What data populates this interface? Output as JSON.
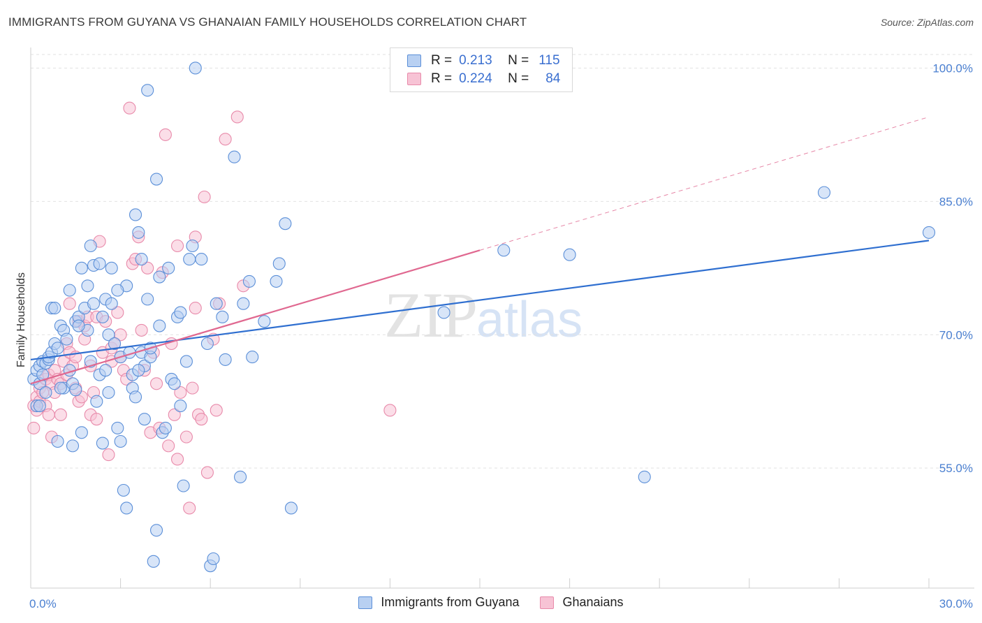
{
  "header": {
    "title": "IMMIGRANTS FROM GUYANA VS GHANAIAN FAMILY HOUSEHOLDS CORRELATION CHART",
    "source": "Source: ZipAtlas.com"
  },
  "watermark": {
    "zip": "ZIP",
    "atlas": "atlas"
  },
  "legend": {
    "series": [
      {
        "r_label": "R =",
        "r_value": "0.213",
        "n_label": "N =",
        "n_value": "115"
      },
      {
        "r_label": "R =",
        "r_value": "0.224",
        "n_label": "N =",
        "n_value": "84"
      }
    ]
  },
  "colors": {
    "blue_fill": "#b8d0f2",
    "blue_stroke": "#5b8fd8",
    "blue_line": "#2f6fd0",
    "pink_fill": "#f7c3d5",
    "pink_stroke": "#e88aaa",
    "pink_line": "#e06890",
    "grid": "#e2e2e2",
    "tick_text": "#4a7fd0"
  },
  "chart_data": {
    "type": "scatter",
    "title": "IMMIGRANTS FROM GUYANA VS GHANAIAN FAMILY HOUSEHOLDS CORRELATION CHART",
    "xlabel": "",
    "ylabel": "Family Households",
    "xlim": [
      0,
      30
    ],
    "ylim": [
      41.5,
      102
    ],
    "x_tick_labels": [
      "0.0%",
      "30.0%"
    ],
    "y_ticks": [
      55,
      70,
      85,
      100
    ],
    "y_tick_labels": [
      "55.0%",
      "70.0%",
      "85.0%",
      "100.0%"
    ],
    "grid": true,
    "legend_placement": "top-center",
    "series": [
      {
        "name": "Immigrants from Guyana",
        "color": "#5b8fd8",
        "trend": {
          "x": [
            0,
            30
          ],
          "y": [
            67.2,
            80.6
          ]
        },
        "points": [
          [
            0.1,
            65.0
          ],
          [
            0.2,
            66.0
          ],
          [
            0.2,
            62.0
          ],
          [
            0.3,
            64.5
          ],
          [
            0.3,
            66.5
          ],
          [
            0.4,
            65.5
          ],
          [
            0.4,
            67.0
          ],
          [
            0.5,
            66.8
          ],
          [
            0.5,
            63.5
          ],
          [
            0.6,
            67.2
          ],
          [
            0.6,
            67.5
          ],
          [
            0.7,
            68.0
          ],
          [
            0.7,
            73.0
          ],
          [
            0.8,
            69.0
          ],
          [
            0.9,
            68.5
          ],
          [
            0.9,
            58.0
          ],
          [
            1.0,
            71.0
          ],
          [
            1.1,
            70.5
          ],
          [
            1.1,
            64.0
          ],
          [
            1.2,
            69.5
          ],
          [
            1.3,
            66.0
          ],
          [
            1.3,
            75.0
          ],
          [
            1.4,
            57.5
          ],
          [
            1.4,
            64.5
          ],
          [
            1.5,
            71.5
          ],
          [
            1.5,
            63.8
          ],
          [
            1.6,
            72.0
          ],
          [
            1.7,
            77.5
          ],
          [
            1.7,
            59.0
          ],
          [
            1.8,
            73.0
          ],
          [
            1.9,
            70.5
          ],
          [
            1.9,
            75.5
          ],
          [
            2.0,
            80.0
          ],
          [
            2.0,
            67.0
          ],
          [
            2.1,
            73.5
          ],
          [
            2.1,
            77.8
          ],
          [
            2.2,
            62.5
          ],
          [
            2.3,
            78.0
          ],
          [
            2.3,
            65.5
          ],
          [
            2.4,
            57.8
          ],
          [
            2.5,
            74.0
          ],
          [
            2.5,
            66.0
          ],
          [
            2.6,
            63.5
          ],
          [
            2.6,
            70.0
          ],
          [
            2.7,
            77.5
          ],
          [
            2.7,
            73.5
          ],
          [
            2.8,
            69.0
          ],
          [
            2.9,
            59.5
          ],
          [
            3.0,
            67.5
          ],
          [
            3.0,
            58.0
          ],
          [
            3.1,
            52.5
          ],
          [
            3.2,
            75.5
          ],
          [
            3.2,
            50.5
          ],
          [
            3.3,
            68.0
          ],
          [
            3.4,
            65.5
          ],
          [
            3.4,
            64.0
          ],
          [
            3.5,
            83.5
          ],
          [
            3.5,
            63.0
          ],
          [
            3.6,
            81.5
          ],
          [
            3.7,
            68.0
          ],
          [
            3.7,
            78.5
          ],
          [
            3.8,
            66.5
          ],
          [
            3.8,
            60.5
          ],
          [
            3.9,
            97.5
          ],
          [
            3.9,
            74.0
          ],
          [
            4.0,
            67.5
          ],
          [
            4.0,
            68.5
          ],
          [
            4.1,
            44.5
          ],
          [
            4.2,
            48.0
          ],
          [
            4.2,
            87.5
          ],
          [
            4.3,
            76.5
          ],
          [
            4.4,
            59.0
          ],
          [
            4.5,
            59.5
          ],
          [
            4.6,
            77.5
          ],
          [
            4.7,
            65.0
          ],
          [
            4.8,
            64.5
          ],
          [
            4.9,
            72.0
          ],
          [
            5.0,
            62.0
          ],
          [
            5.0,
            72.5
          ],
          [
            5.1,
            53.0
          ],
          [
            5.2,
            67.0
          ],
          [
            5.3,
            78.5
          ],
          [
            5.4,
            80.0
          ],
          [
            5.5,
            100.0
          ],
          [
            5.7,
            78.5
          ],
          [
            6.0,
            44.0
          ],
          [
            6.1,
            44.8
          ],
          [
            6.2,
            73.5
          ],
          [
            6.4,
            72.0
          ],
          [
            6.5,
            67.2
          ],
          [
            6.8,
            90.0
          ],
          [
            7.0,
            54.0
          ],
          [
            7.1,
            73.5
          ],
          [
            7.3,
            76.0
          ],
          [
            7.4,
            67.5
          ],
          [
            7.8,
            71.5
          ],
          [
            8.2,
            76.0
          ],
          [
            8.3,
            78.0
          ],
          [
            8.5,
            82.5
          ],
          [
            8.7,
            50.5
          ],
          [
            13.8,
            72.5
          ],
          [
            15.8,
            79.5
          ],
          [
            18.0,
            79.0
          ],
          [
            20.5,
            54.0
          ],
          [
            26.5,
            86.0
          ],
          [
            30.0,
            81.5
          ],
          [
            0.3,
            62.0
          ],
          [
            0.8,
            73.0
          ],
          [
            1.6,
            71.0
          ],
          [
            2.9,
            75.0
          ],
          [
            3.6,
            66.0
          ],
          [
            4.3,
            71.0
          ],
          [
            5.9,
            69.0
          ],
          [
            1.0,
            64.0
          ],
          [
            2.4,
            72.0
          ]
        ]
      },
      {
        "name": "Ghanaians",
        "color": "#e88aaa",
        "trend": {
          "x": [
            0,
            15
          ],
          "y": [
            64.5,
            79.5
          ]
        },
        "trend_dashed": {
          "x": [
            15,
            30
          ],
          "y": [
            79.5,
            94.5
          ]
        },
        "points": [
          [
            0.1,
            62.0
          ],
          [
            0.1,
            59.5
          ],
          [
            0.2,
            61.5
          ],
          [
            0.2,
            63.0
          ],
          [
            0.3,
            62.5
          ],
          [
            0.3,
            64.0
          ],
          [
            0.4,
            63.5
          ],
          [
            0.5,
            65.0
          ],
          [
            0.5,
            62.0
          ],
          [
            0.6,
            65.5
          ],
          [
            0.6,
            61.0
          ],
          [
            0.7,
            64.5
          ],
          [
            0.7,
            58.5
          ],
          [
            0.8,
            66.0
          ],
          [
            0.8,
            63.5
          ],
          [
            0.9,
            65.0
          ],
          [
            1.0,
            64.5
          ],
          [
            1.0,
            61.0
          ],
          [
            1.1,
            67.0
          ],
          [
            1.2,
            65.5
          ],
          [
            1.2,
            69.0
          ],
          [
            1.3,
            68.0
          ],
          [
            1.3,
            73.5
          ],
          [
            1.4,
            66.5
          ],
          [
            1.5,
            64.0
          ],
          [
            1.5,
            67.5
          ],
          [
            1.6,
            71.5
          ],
          [
            1.6,
            62.5
          ],
          [
            1.7,
            63.0
          ],
          [
            1.8,
            71.0
          ],
          [
            1.8,
            69.5
          ],
          [
            1.9,
            72.0
          ],
          [
            2.0,
            61.0
          ],
          [
            2.0,
            66.5
          ],
          [
            2.1,
            63.5
          ],
          [
            2.2,
            60.5
          ],
          [
            2.2,
            72.0
          ],
          [
            2.3,
            80.5
          ],
          [
            2.4,
            68.0
          ],
          [
            2.5,
            71.5
          ],
          [
            2.6,
            56.5
          ],
          [
            2.7,
            67.0
          ],
          [
            2.7,
            68.5
          ],
          [
            2.8,
            69.0
          ],
          [
            2.9,
            72.5
          ],
          [
            3.0,
            67.5
          ],
          [
            3.0,
            70.0
          ],
          [
            3.1,
            66.0
          ],
          [
            3.2,
            65.0
          ],
          [
            3.3,
            95.5
          ],
          [
            3.4,
            78.0
          ],
          [
            3.5,
            78.5
          ],
          [
            3.6,
            81.0
          ],
          [
            3.7,
            70.5
          ],
          [
            3.8,
            66.0
          ],
          [
            3.9,
            77.5
          ],
          [
            4.0,
            59.0
          ],
          [
            4.1,
            68.0
          ],
          [
            4.2,
            64.5
          ],
          [
            4.3,
            59.5
          ],
          [
            4.4,
            77.0
          ],
          [
            4.5,
            92.5
          ],
          [
            4.6,
            57.5
          ],
          [
            4.7,
            69.0
          ],
          [
            4.8,
            61.0
          ],
          [
            4.9,
            80.0
          ],
          [
            4.9,
            56.0
          ],
          [
            5.0,
            63.5
          ],
          [
            5.2,
            58.5
          ],
          [
            5.3,
            50.5
          ],
          [
            5.4,
            64.0
          ],
          [
            5.5,
            73.0
          ],
          [
            5.5,
            81.0
          ],
          [
            5.6,
            61.0
          ],
          [
            5.7,
            60.5
          ],
          [
            5.8,
            85.5
          ],
          [
            5.9,
            54.5
          ],
          [
            6.1,
            69.5
          ],
          [
            6.2,
            61.5
          ],
          [
            6.3,
            73.5
          ],
          [
            6.5,
            92.0
          ],
          [
            6.9,
            94.5
          ],
          [
            7.1,
            75.5
          ],
          [
            12.0,
            61.5
          ]
        ]
      }
    ]
  },
  "bottom_legend": [
    "Immigrants from Guyana",
    "Ghanaians"
  ]
}
